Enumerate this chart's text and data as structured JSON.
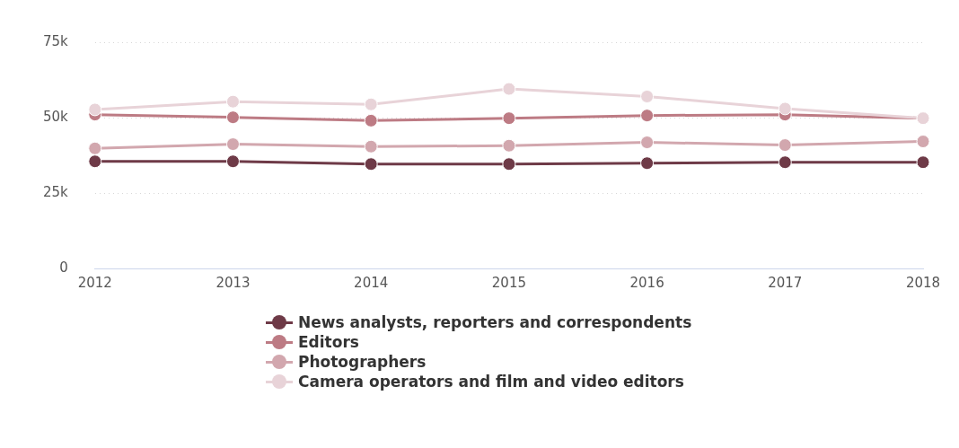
{
  "chart_data": {
    "type": "line",
    "categories": [
      "2012",
      "2013",
      "2014",
      "2015",
      "2016",
      "2017",
      "2018"
    ],
    "series": [
      {
        "name": "News analysts, reporters and correspondents",
        "color": "#6e3a47",
        "values": [
          35500,
          35500,
          34600,
          34600,
          34900,
          35200,
          35200
        ]
      },
      {
        "name": "Editors",
        "color": "#bd7b84",
        "values": [
          51000,
          50100,
          49000,
          49800,
          50700,
          51000,
          49800
        ]
      },
      {
        "name": "Photographers",
        "color": "#d2a7ae",
        "values": [
          39800,
          41200,
          40400,
          40700,
          41800,
          40900,
          42100
        ]
      },
      {
        "name": "Camera operators and film and video editors",
        "color": "#e8d3d8",
        "values": [
          52700,
          55300,
          54400,
          59500,
          57000,
          53000,
          49800
        ]
      }
    ],
    "ylim": [
      0,
      75000
    ],
    "yticks": [
      {
        "value": 0,
        "label": "0"
      },
      {
        "value": 25000,
        "label": "25k"
      },
      {
        "value": 50000,
        "label": "50k"
      },
      {
        "value": 75000,
        "label": "75k"
      }
    ],
    "grid": "y",
    "legend": "bottom",
    "marker": "circle",
    "line_style": "solid"
  }
}
